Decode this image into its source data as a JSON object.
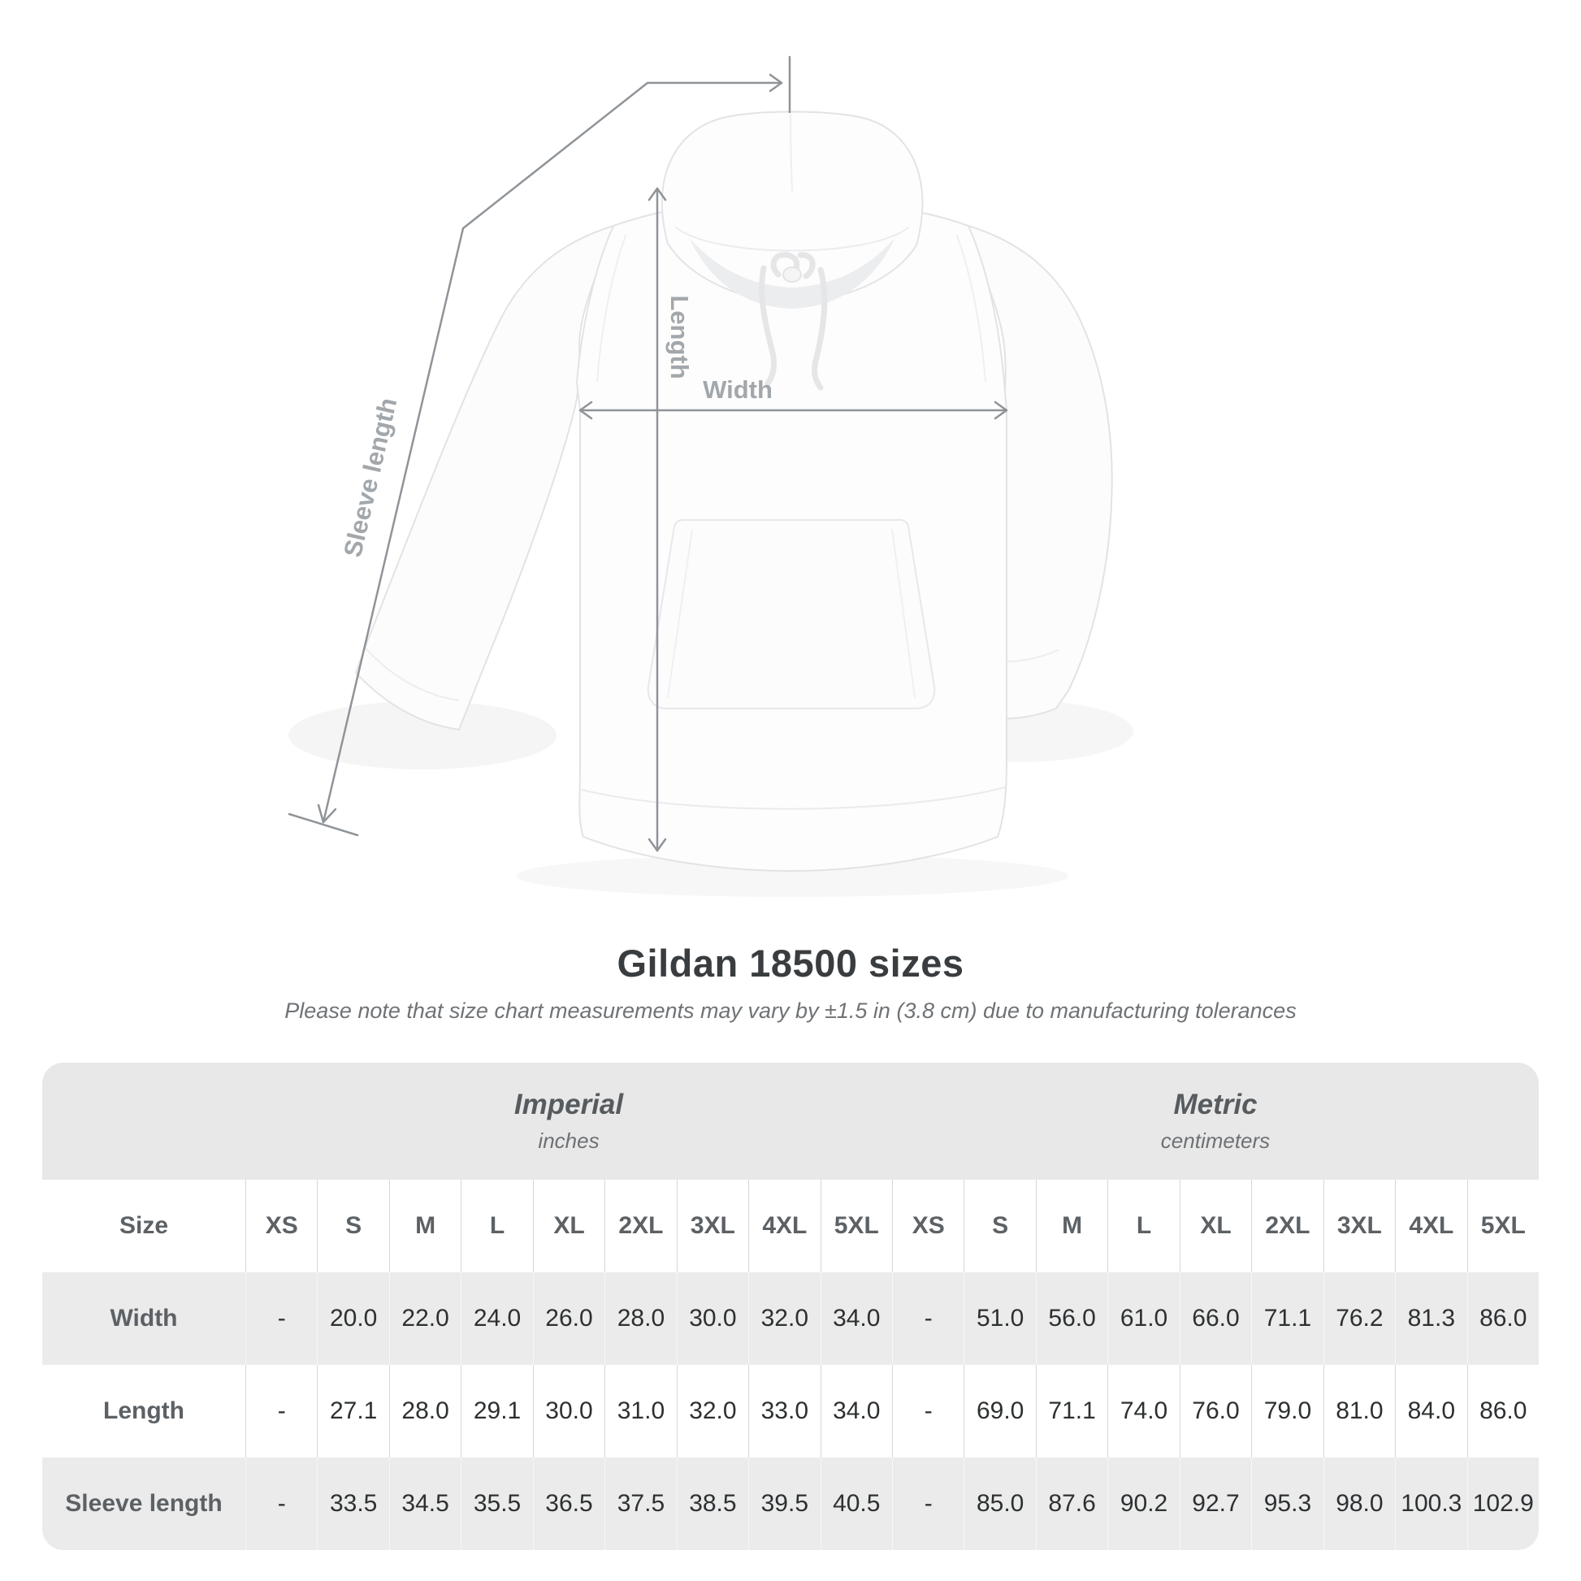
{
  "page": {
    "title": "Gildan 18500 sizes",
    "subtitle": "Please note that size chart measurements may vary by ±1.5 in (3.8 cm) due to manufacturing tolerances"
  },
  "diagram": {
    "garment": "white pullover hoodie, front view",
    "labels": {
      "length": "Length",
      "width": "Width",
      "sleeve": "Sleeve length"
    },
    "line_color": "#8f9499",
    "label_color": "#a2a7ab"
  },
  "size_table": {
    "corner_header": "Size",
    "groups": [
      {
        "name": "Imperial",
        "unit": "inches"
      },
      {
        "name": "Metric",
        "unit": "centimeters"
      }
    ],
    "sizes": [
      "XS",
      "S",
      "M",
      "L",
      "XL",
      "2XL",
      "3XL",
      "4XL",
      "5XL"
    ],
    "rows": [
      {
        "label": "Width",
        "imperial": [
          "-",
          "20.0",
          "22.0",
          "24.0",
          "26.0",
          "28.0",
          "30.0",
          "32.0",
          "34.0"
        ],
        "metric": [
          "-",
          "51.0",
          "56.0",
          "61.0",
          "66.0",
          "71.1",
          "76.2",
          "81.3",
          "86.0"
        ]
      },
      {
        "label": "Length",
        "imperial": [
          "-",
          "27.1",
          "28.0",
          "29.1",
          "30.0",
          "31.0",
          "32.0",
          "33.0",
          "34.0"
        ],
        "metric": [
          "-",
          "69.0",
          "71.1",
          "74.0",
          "76.0",
          "79.0",
          "81.0",
          "84.0",
          "86.0"
        ]
      },
      {
        "label": "Sleeve length",
        "imperial": [
          "-",
          "33.5",
          "34.5",
          "35.5",
          "36.5",
          "37.5",
          "38.5",
          "39.5",
          "40.5"
        ],
        "metric": [
          "-",
          "85.0",
          "87.6",
          "90.2",
          "92.7",
          "95.3",
          "98.0",
          "100.3",
          "102.9"
        ]
      }
    ]
  },
  "chart_data": {
    "type": "table",
    "title": "Gildan 18500 sizes",
    "tolerance_note": "±1.5 in (3.8 cm)",
    "column_groups": [
      "Imperial (inches)",
      "Metric (centimeters)"
    ],
    "sizes": [
      "XS",
      "S",
      "M",
      "L",
      "XL",
      "2XL",
      "3XL",
      "4XL",
      "5XL"
    ],
    "measurements": [
      {
        "name": "Width",
        "imperial_in": [
          null,
          20.0,
          22.0,
          24.0,
          26.0,
          28.0,
          30.0,
          32.0,
          34.0
        ],
        "metric_cm": [
          null,
          51.0,
          56.0,
          61.0,
          66.0,
          71.1,
          76.2,
          81.3,
          86.0
        ]
      },
      {
        "name": "Length",
        "imperial_in": [
          null,
          27.1,
          28.0,
          29.1,
          30.0,
          31.0,
          32.0,
          33.0,
          34.0
        ],
        "metric_cm": [
          null,
          69.0,
          71.1,
          74.0,
          76.0,
          79.0,
          81.0,
          84.0,
          86.0
        ]
      },
      {
        "name": "Sleeve length",
        "imperial_in": [
          null,
          33.5,
          34.5,
          35.5,
          36.5,
          37.5,
          38.5,
          39.5,
          40.5
        ],
        "metric_cm": [
          null,
          85.0,
          87.6,
          90.2,
          92.7,
          95.3,
          98.0,
          100.3,
          102.9
        ]
      }
    ]
  }
}
